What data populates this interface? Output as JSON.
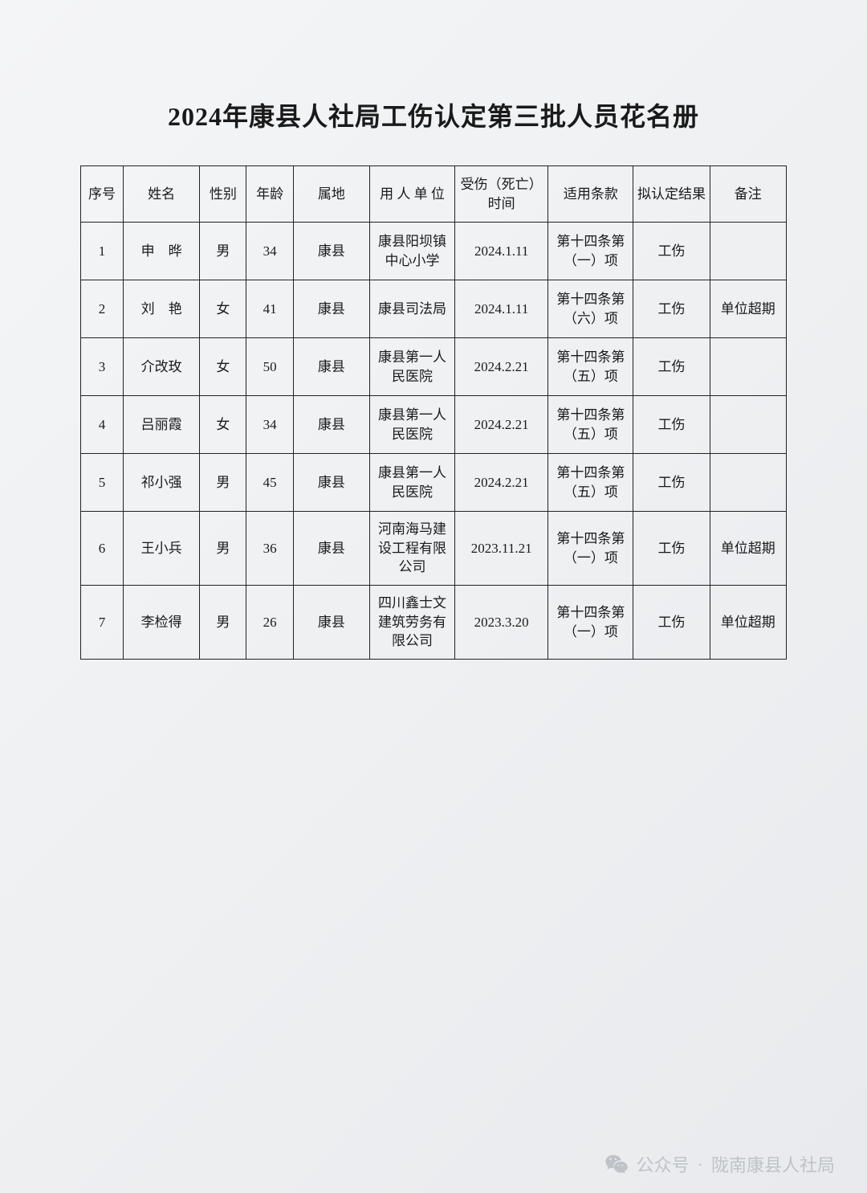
{
  "title": "2024年康县人社局工伤认定第三批人员花名册",
  "columns": [
    "序号",
    "姓名",
    "性别",
    "年龄",
    "属地",
    "用 人 单 位",
    "受伤（死亡）时间",
    "适用条款",
    "拟认定结果",
    "备注"
  ],
  "rows": [
    {
      "seq": "1",
      "name": "申　晔",
      "sex": "男",
      "age": "34",
      "loc": "康县",
      "emp": "康县阳坝镇中心小学",
      "date": "2024.1.11",
      "law": "第十四条第（一）项",
      "res": "工伤",
      "note": ""
    },
    {
      "seq": "2",
      "name": "刘　艳",
      "sex": "女",
      "age": "41",
      "loc": "康县",
      "emp": "康县司法局",
      "date": "2024.1.11",
      "law": "第十四条第（六）项",
      "res": "工伤",
      "note": "单位超期"
    },
    {
      "seq": "3",
      "name": "介改玫",
      "sex": "女",
      "age": "50",
      "loc": "康县",
      "emp": "康县第一人民医院",
      "date": "2024.2.21",
      "law": "第十四条第（五）项",
      "res": "工伤",
      "note": ""
    },
    {
      "seq": "4",
      "name": "吕丽霞",
      "sex": "女",
      "age": "34",
      "loc": "康县",
      "emp": "康县第一人民医院",
      "date": "2024.2.21",
      "law": "第十四条第（五）项",
      "res": "工伤",
      "note": ""
    },
    {
      "seq": "5",
      "name": "祁小强",
      "sex": "男",
      "age": "45",
      "loc": "康县",
      "emp": "康县第一人民医院",
      "date": "2024.2.21",
      "law": "第十四条第（五）项",
      "res": "工伤",
      "note": ""
    },
    {
      "seq": "6",
      "name": "王小兵",
      "sex": "男",
      "age": "36",
      "loc": "康县",
      "emp": "河南海马建设工程有限公司",
      "date": "2023.11.21",
      "law": "第十四条第（一）项",
      "res": "工伤",
      "note": "单位超期"
    },
    {
      "seq": "7",
      "name": "李检得",
      "sex": "男",
      "age": "26",
      "loc": "康县",
      "emp": "四川鑫士文建筑劳务有限公司",
      "date": "2023.3.20",
      "law": "第十四条第（一）项",
      "res": "工伤",
      "note": "单位超期"
    }
  ],
  "footer": {
    "prefix": "公众号",
    "sep": "·",
    "account": "陇南康县人社局"
  },
  "style": {
    "page_bg": "#eef0f2",
    "border_color": "#222",
    "text_color": "#1a1a1a",
    "footer_color": "#bfc3c7"
  }
}
